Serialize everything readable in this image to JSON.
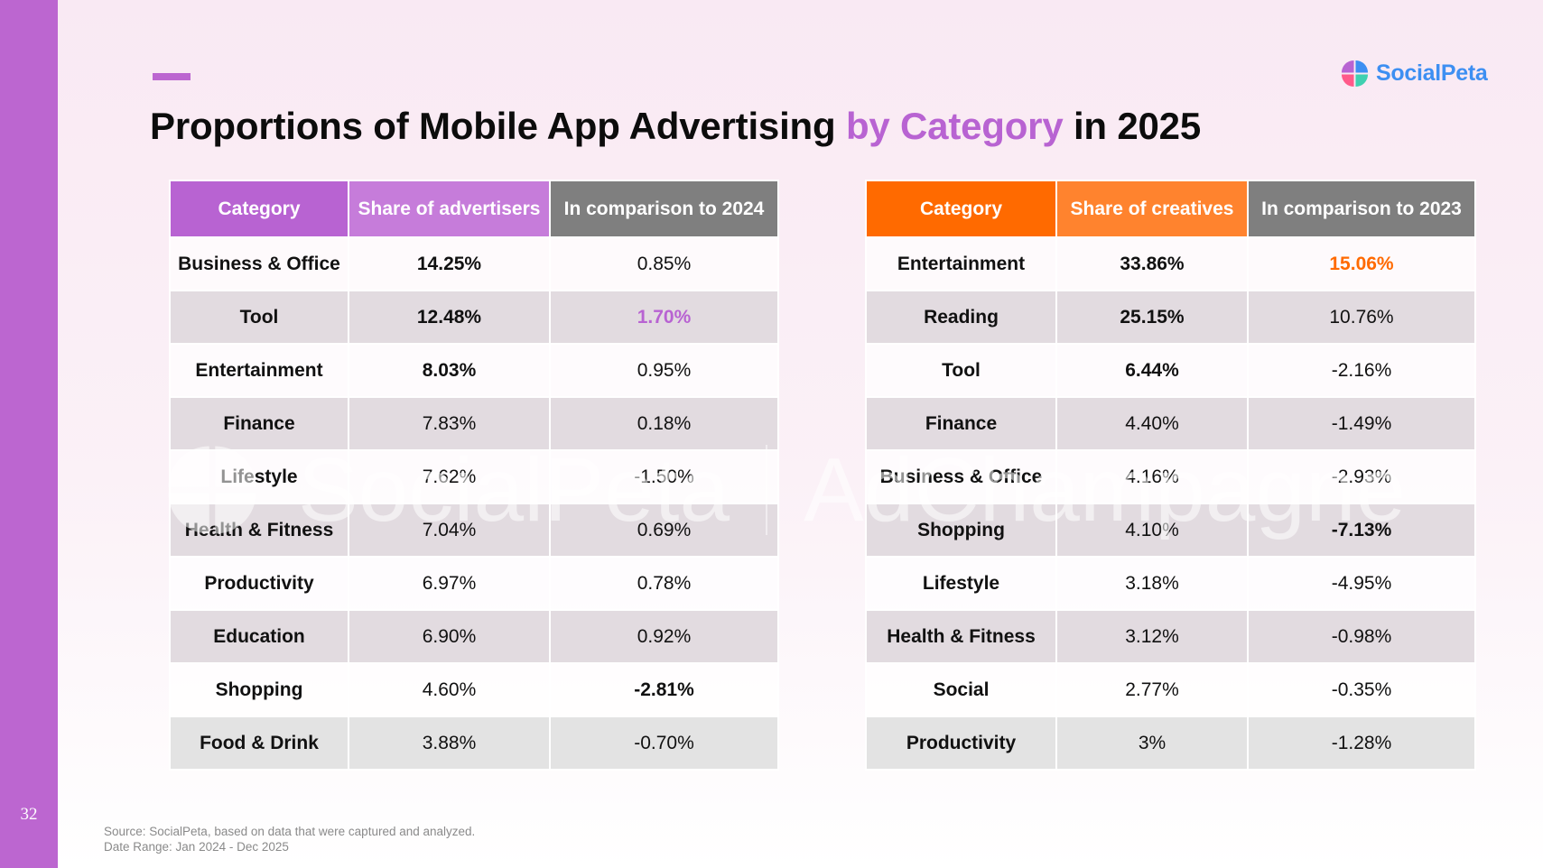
{
  "page_number": "32",
  "brand": {
    "name": "SocialPeta",
    "accent": "#b863d2",
    "logo_blue": "#3d8ff2"
  },
  "title": {
    "part1": "Proportions of Mobile App Advertising ",
    "highlight": "by Category",
    "part2": " in 2025"
  },
  "watermark": {
    "left": "SocialPeta",
    "right": "AdChampagne"
  },
  "advertisers_table": {
    "headers": [
      "Category",
      "Share of advertisers",
      "In comparison to 2024"
    ],
    "colors": {
      "header1": "#b863d2",
      "header2": "#c67cda",
      "header3": "#7f7f7f"
    },
    "rows": [
      {
        "category": "Business & Office",
        "share": "14.25%",
        "change": "0.85%"
      },
      {
        "category": "Tool",
        "share": "12.48%",
        "change": "1.70%"
      },
      {
        "category": "Entertainment",
        "share": "8.03%",
        "change": "0.95%"
      },
      {
        "category": "Finance",
        "share": "7.83%",
        "change": "0.18%"
      },
      {
        "category": "Lifestyle",
        "share": "7.62%",
        "change": "-1.50%"
      },
      {
        "category": "Health & Fitness",
        "share": "7.04%",
        "change": "0.69%"
      },
      {
        "category": "Productivity",
        "share": "6.97%",
        "change": "0.78%"
      },
      {
        "category": "Education",
        "share": "6.90%",
        "change": "0.92%"
      },
      {
        "category": "Shopping",
        "share": "4.60%",
        "change": "-2.81%"
      },
      {
        "category": "Food & Drink",
        "share": "3.88%",
        "change": "-0.70%"
      }
    ]
  },
  "creatives_table": {
    "headers": [
      "Category",
      "Share of creatives",
      "In comparison to 2023"
    ],
    "colors": {
      "header1": "#ff6a00",
      "header2": "#ff832e",
      "header3": "#7f7f7f"
    },
    "rows": [
      {
        "category": "Entertainment",
        "share": "33.86%",
        "change": "15.06%"
      },
      {
        "category": "Reading",
        "share": "25.15%",
        "change": "10.76%"
      },
      {
        "category": "Tool",
        "share": "6.44%",
        "change": "-2.16%"
      },
      {
        "category": "Finance",
        "share": "4.40%",
        "change": "-1.49%"
      },
      {
        "category": "Business & Office",
        "share": "4.16%",
        "change": "-2.93%"
      },
      {
        "category": "Shopping",
        "share": "4.10%",
        "change": "-7.13%"
      },
      {
        "category": "Lifestyle",
        "share": "3.18%",
        "change": "-4.95%"
      },
      {
        "category": "Health & Fitness",
        "share": "3.12%",
        "change": "-0.98%"
      },
      {
        "category": "Social",
        "share": "2.77%",
        "change": "-0.35%"
      },
      {
        "category": "Productivity",
        "share": "3%",
        "change": "-1.28%"
      }
    ]
  },
  "source": {
    "line1": "Source: SocialPeta, based on data that were captured and analyzed.",
    "line2": "Date Range: Jan 2024 - Dec 2025"
  }
}
